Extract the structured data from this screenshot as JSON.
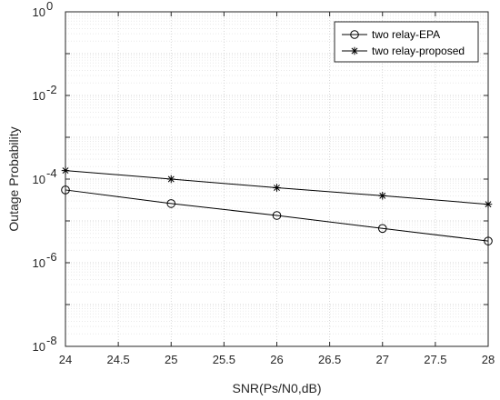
{
  "chart_data": {
    "type": "line",
    "xlabel": "SNR(Ps/N0,dB)",
    "ylabel": "Outage Probability",
    "xlim": [
      24,
      28
    ],
    "ylim": [
      1e-08,
      1
    ],
    "yscale": "log",
    "grid": true,
    "minor_grid": true,
    "legend_position": "top-right",
    "x_ticks": [
      "24",
      "24.5",
      "25",
      "25.5",
      "26",
      "26.5",
      "27",
      "27.5",
      "28"
    ],
    "y_ticks": [
      {
        "base": "10",
        "exp": "0"
      },
      {
        "base": "10",
        "exp": "-2"
      },
      {
        "base": "10",
        "exp": "-4"
      },
      {
        "base": "10",
        "exp": "-6"
      },
      {
        "base": "10",
        "exp": "-8"
      }
    ],
    "x": [
      24,
      25,
      26,
      27,
      28
    ],
    "series": [
      {
        "name": "two relay-EPA",
        "marker": "circle",
        "values": [
          5.5e-05,
          2.6e-05,
          1.35e-05,
          6.6e-06,
          3.3e-06
        ]
      },
      {
        "name": "two relay-proposed",
        "marker": "star",
        "values": [
          0.00016,
          0.0001,
          6.2e-05,
          4e-05,
          2.5e-05
        ]
      }
    ]
  }
}
